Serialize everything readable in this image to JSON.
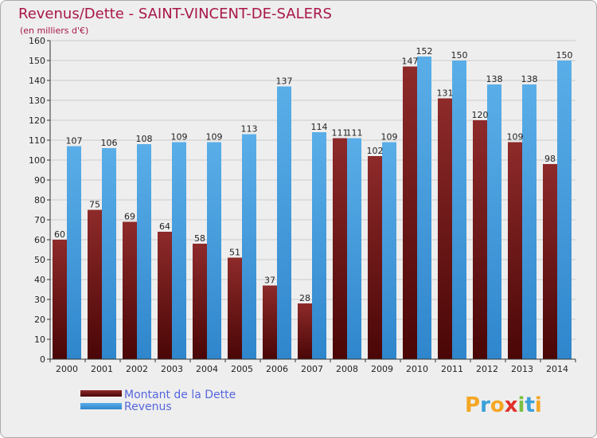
{
  "chart_data": {
    "type": "bar",
    "title": "Revenus/Dette - SAINT-VINCENT-DE-SALERS",
    "subtitle": "(en milliers d'€)",
    "categories": [
      "2000",
      "2001",
      "2002",
      "2003",
      "2004",
      "2005",
      "2006",
      "2007",
      "2008",
      "2009",
      "2010",
      "2011",
      "2012",
      "2013",
      "2014"
    ],
    "series": [
      {
        "name": "Montant de la Dette",
        "color": "#7a1e1e",
        "values": [
          60,
          75,
          69,
          64,
          58,
          51,
          37,
          28,
          111,
          102,
          147,
          131,
          120,
          109,
          98
        ]
      },
      {
        "name": "Revenus",
        "color": "#4fa3e0",
        "values": [
          107,
          106,
          108,
          109,
          109,
          113,
          137,
          114,
          111,
          109,
          152,
          150,
          138,
          138,
          150
        ]
      }
    ],
    "ylim": [
      0,
      160
    ],
    "yticks": [
      0,
      10,
      20,
      30,
      40,
      50,
      60,
      70,
      80,
      90,
      100,
      110,
      120,
      130,
      140,
      150,
      160
    ],
    "grid": true,
    "xlabel": "",
    "ylabel": "",
    "legend": "bottom-left"
  },
  "branding": {
    "logo_letters": [
      "P",
      "r",
      "o",
      "x",
      "i",
      "t",
      "i"
    ],
    "logo_colors": [
      "#f5a623",
      "#3aa0d8",
      "#f5a623",
      "#e0302a",
      "#7bc043",
      "#3aa0d8",
      "#f5a623"
    ]
  },
  "colors": {
    "title": "#a8174a",
    "legend_text": "#5566dd",
    "background": "#eeeeee",
    "grid": "#cccccc"
  }
}
